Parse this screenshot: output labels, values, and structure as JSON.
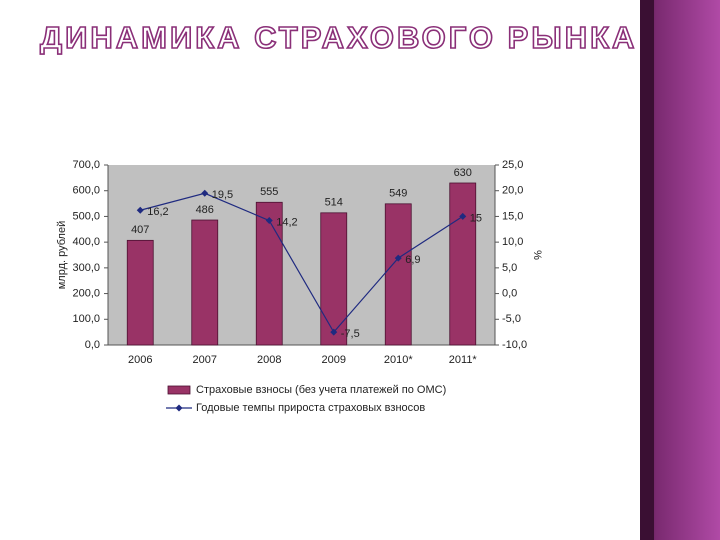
{
  "chart_data": {
    "type": "combo",
    "title": "ДИНАМИКА СТРАХОВОГО РЫНКА",
    "y_label": "млрд. рублей",
    "y2_label": "%",
    "categories": [
      "2006",
      "2007",
      "2008",
      "2009",
      "2010*",
      "2011*"
    ],
    "series": [
      {
        "name": "Страховые взносы (без учета платежей по ОМС)",
        "type": "bar",
        "color": "#993366",
        "values": [
          407,
          486,
          555,
          514,
          549,
          630
        ]
      },
      {
        "name": "Годовые темпы прироста страховых взносов",
        "type": "line",
        "axis": "y2",
        "color": "#1f2a80",
        "values": [
          16.2,
          19.5,
          14.2,
          -7.5,
          6.9,
          15
        ],
        "value_labels": [
          "16,2",
          "19,5",
          "14,2",
          "-7,5",
          "6,9",
          "15"
        ]
      }
    ],
    "ylim": [
      0,
      700
    ],
    "yticks": [
      {
        "value": 0,
        "label": "0,0"
      },
      {
        "value": 100,
        "label": "100,0"
      },
      {
        "value": 200,
        "label": "200,0"
      },
      {
        "value": 300,
        "label": "300,0"
      },
      {
        "value": 400,
        "label": "400,0"
      },
      {
        "value": 500,
        "label": "500,0"
      },
      {
        "value": 600,
        "label": "600,0"
      },
      {
        "value": 700,
        "label": "700,0"
      }
    ],
    "y2lim": [
      -10,
      25
    ],
    "y2ticks": [
      {
        "value": -10,
        "label": "-10,0"
      },
      {
        "value": -5,
        "label": "-5,0"
      },
      {
        "value": 0,
        "label": "0,0"
      },
      {
        "value": 5,
        "label": "5,0"
      },
      {
        "value": 10,
        "label": "10,0"
      },
      {
        "value": 15,
        "label": "15,0"
      },
      {
        "value": 20,
        "label": "20,0"
      },
      {
        "value": 25,
        "label": "25,0"
      }
    ],
    "legend": "bottom"
  }
}
